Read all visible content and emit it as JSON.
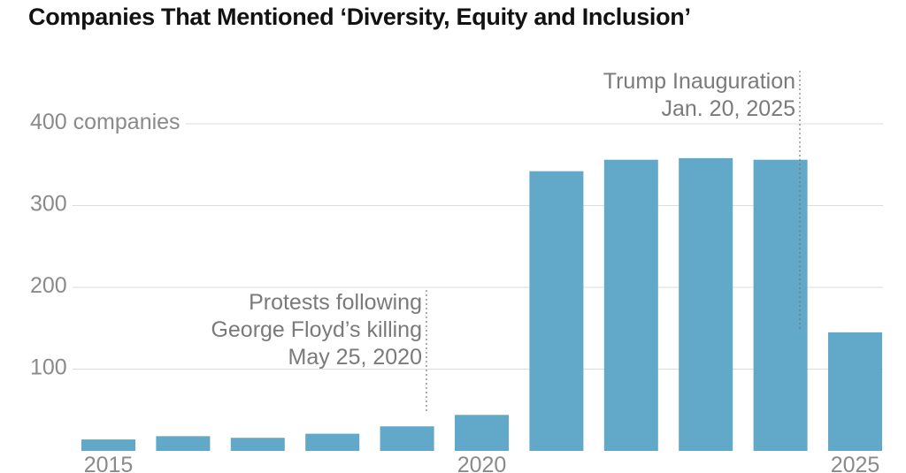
{
  "chart_data": {
    "type": "bar",
    "title": "Companies That Mentioned ‘Diversity, Equity and Inclusion’",
    "categories": [
      "2015",
      "2016",
      "2017",
      "2018",
      "2019",
      "2020",
      "2021",
      "2022",
      "2023",
      "2024",
      "2025"
    ],
    "values": [
      14,
      18,
      16,
      21,
      30,
      44,
      342,
      356,
      358,
      356,
      145
    ],
    "ylim": [
      0,
      400
    ],
    "yticks": [
      100,
      200,
      300,
      400
    ],
    "ytick_labels": [
      "100",
      "200",
      "300",
      "400 companies"
    ],
    "xtick_labels": [
      {
        "index": 0,
        "label": "2015"
      },
      {
        "index": 5,
        "label": "2020"
      },
      {
        "index": 10,
        "label": "2025"
      }
    ],
    "bar_color": "#62a8c9",
    "grid": true,
    "annotations": [
      {
        "after_index": 5,
        "lines": [
          "Protests following",
          "George Floyd’s killing",
          "May 25, 2020"
        ]
      },
      {
        "after_index": 10,
        "lines": [
          "Trump Inauguration",
          "Jan. 20, 2025"
        ]
      }
    ]
  }
}
